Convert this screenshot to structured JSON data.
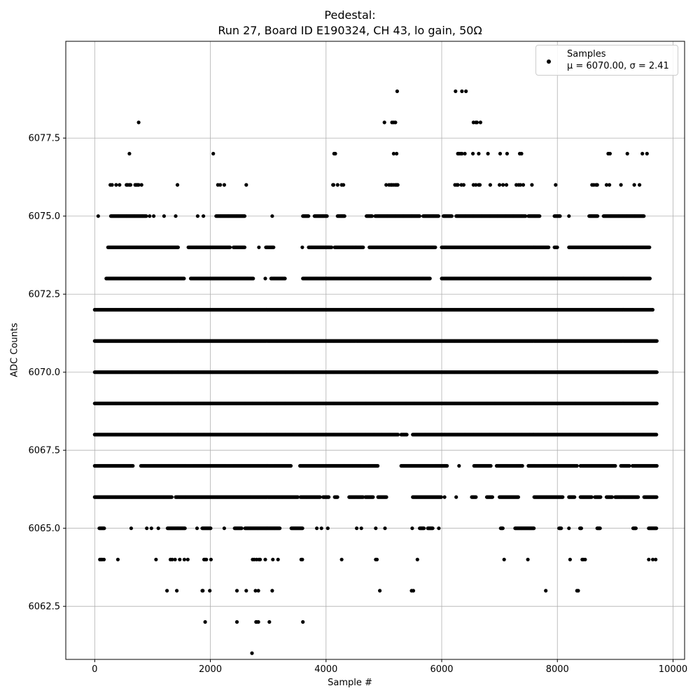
{
  "chart_data": {
    "type": "scatter",
    "title": "Pedestal:",
    "subtitle": "Run 27, Board ID E190324, CH 43, lo gain, 50Ω",
    "xlabel": "Sample #",
    "ylabel": "ADC Counts",
    "xlim": [
      -500,
      10200
    ],
    "ylim": [
      6060.8,
      6080.6
    ],
    "xticks": [
      0,
      2000,
      4000,
      6000,
      8000,
      10000
    ],
    "xtick_labels": [
      "0",
      "2000",
      "4000",
      "6000",
      "8000",
      "10000"
    ],
    "yticks": [
      6062.5,
      6065.0,
      6067.5,
      6070.0,
      6072.5,
      6075.0,
      6077.5
    ],
    "ytick_labels": [
      "6062.5",
      "6065.0",
      "6067.5",
      "6070.0",
      "6072.5",
      "6075.0",
      "6077.5"
    ],
    "grid": true,
    "legend_position": "top-right",
    "series": [
      {
        "name": "Samples",
        "stats_label": "μ = 6070.00, σ = 2.41",
        "color": "#000000",
        "marker": "circle",
        "n_samples": 9728,
        "mean": 6070.0,
        "std": 2.41,
        "levels": [
          {
            "y": 6061,
            "x": [
              2720
            ]
          },
          {
            "y": 6062,
            "x": [
              1910,
              2460,
              2790,
              2800,
              2830,
              3020,
              3600
            ]
          },
          {
            "y": 6063,
            "x": [
              1250,
              1420,
              1860,
              1870,
              1990,
              2460,
              2620,
              2780,
              2830,
              3070,
              4930,
              5480,
              5510,
              7800,
              8340,
              8360
            ]
          },
          {
            "y": 6064,
            "x": [
              90,
              110,
              130,
              160,
              400,
              1060,
              1310,
              1340,
              1390,
              1470,
              1550,
              1610,
              1890,
              1910,
              1930,
              2010,
              2730,
              2760,
              2800,
              2840,
              2860,
              2950,
              3080,
              3170,
              3570,
              3590,
              4270,
              4860,
              4880,
              5580,
              7080,
              7490,
              8220,
              8430,
              8450,
              8480,
              9580,
              9650,
              9700
            ]
          },
          {
            "y": 6065,
            "x": [
              [
                80,
                170
              ],
              630,
              900,
              980,
              1100,
              [
                1260,
                1570
              ],
              1770,
              [
                1860,
                2010
              ],
              2240,
              [
                2420,
                2540
              ],
              [
                2600,
                3200
              ],
              [
                3400,
                3600
              ],
              3840,
              3920,
              4030,
              4530,
              4610,
              4860,
              5020,
              5490,
              [
                5620,
                5700
              ],
              [
                5760,
                5850
              ],
              5950,
              [
                7020,
                7060
              ],
              [
                7270,
                7600
              ],
              [
                8030,
                8070
              ],
              8200,
              [
                8390,
                8420
              ],
              [
                8690,
                8740
              ],
              [
                9310,
                9360
              ],
              [
                9580,
                9720
              ]
            ]
          },
          {
            "y": 6066,
            "x": [
              [
                0,
                1340
              ],
              [
                1400,
                3520
              ],
              [
                3560,
                3900
              ],
              [
                3950,
                4050
              ],
              [
                4150,
                4200
              ],
              [
                4400,
                4650
              ],
              [
                4680,
                4820
              ],
              [
                4900,
                5050
              ],
              [
                5500,
                6000
              ],
              6050,
              6250,
              [
                6520,
                6600
              ],
              [
                6780,
                6880
              ],
              [
                7000,
                7330
              ],
              [
                7600,
                8100
              ],
              [
                8200,
                8300
              ],
              [
                8400,
                8600
              ],
              [
                8650,
                8750
              ],
              [
                8850,
                8950
              ],
              [
                9000,
                9400
              ],
              [
                9500,
                9720
              ]
            ]
          },
          {
            "y": 6067,
            "x": [
              [
                0,
                660
              ],
              [
                800,
                3400
              ],
              [
                3550,
                4900
              ],
              [
                5300,
                6100
              ],
              6300,
              [
                6560,
                6850
              ],
              [
                6950,
                7400
              ],
              [
                7500,
                8350
              ],
              [
                8400,
                9000
              ],
              [
                9100,
                9250
              ],
              [
                9300,
                9720
              ]
            ]
          },
          {
            "y": 6068,
            "x": [
              [
                0,
                5250
              ],
              [
                5300,
                5400
              ],
              [
                5500,
                9720
              ]
            ]
          },
          {
            "y": 6069,
            "x": [
              [
                0,
                9720
              ]
            ]
          },
          {
            "y": 6070,
            "x": [
              [
                0,
                9720
              ]
            ]
          },
          {
            "y": 6071,
            "x": [
              [
                0,
                9720
              ]
            ]
          },
          {
            "y": 6072,
            "x": [
              [
                0,
                9650
              ]
            ]
          },
          {
            "y": 6073,
            "x": [
              [
                200,
                1550
              ],
              [
                1660,
                2750
              ],
              2950,
              [
                3050,
                3300
              ],
              [
                3600,
                5800
              ],
              [
                6000,
                9600
              ]
            ]
          },
          {
            "y": 6074,
            "x": [
              [
                230,
                1450
              ],
              [
                1620,
                2350
              ],
              [
                2400,
                2600
              ],
              2840,
              [
                2960,
                3100
              ],
              3590,
              [
                3700,
                4100
              ],
              [
                4150,
                4650
              ],
              [
                4750,
                5900
              ],
              [
                6000,
                7850
              ],
              [
                7950,
                8000
              ],
              [
                8200,
                9600
              ]
            ]
          },
          {
            "y": 6075,
            "x": [
              60,
              [
                280,
                900
              ],
              950,
              1020,
              1200,
              1400,
              1780,
              1880,
              [
                2100,
                2600
              ],
              3070,
              [
                3600,
                3700
              ],
              [
                3800,
                4020
              ],
              [
                4200,
                4330
              ],
              [
                4700,
                4800
              ],
              [
                4850,
                5620
              ],
              [
                5680,
                5950
              ],
              [
                6030,
                6180
              ],
              [
                6250,
                7450
              ],
              [
                7500,
                7700
              ],
              [
                7950,
                8050
              ],
              8200,
              [
                8550,
                8700
              ],
              [
                8800,
                9500
              ]
            ]
          },
          {
            "y": 6076,
            "x": [
              270,
              300,
              370,
              430,
              550,
              570,
              600,
              620,
              700,
              720,
              740,
              760,
              810,
              1430,
              2130,
              2170,
              2240,
              2620,
              4120,
              4130,
              4200,
              4270,
              4300,
              5040,
              5090,
              5120,
              5140,
              5170,
              5200,
              5220,
              5240,
              6230,
              6260,
              6280,
              6340,
              6380,
              6550,
              6590,
              6640,
              6660,
              6840,
              7000,
              7060,
              7120,
              7290,
              7330,
              7360,
              7410,
              7560,
              7970,
              8600,
              8630,
              8670,
              8690,
              8850,
              8900,
              9100,
              9330,
              9420
            ]
          },
          {
            "y": 6077,
            "x": [
              600,
              2050,
              4140,
              4160,
              5170,
              5220,
              6280,
              6300,
              6330,
              6350,
              6400,
              6540,
              6640,
              6800,
              7010,
              7130,
              7350,
              7380,
              8880,
              8910,
              9210,
              9470,
              9550
            ]
          },
          {
            "y": 6078,
            "x": [
              760,
              5010,
              5140,
              5170,
              5200,
              6550,
              6590,
              6610,
              6670
            ]
          },
          {
            "y": 6079,
            "x": [
              5230,
              6240,
              6350,
              6420
            ]
          }
        ]
      }
    ]
  }
}
